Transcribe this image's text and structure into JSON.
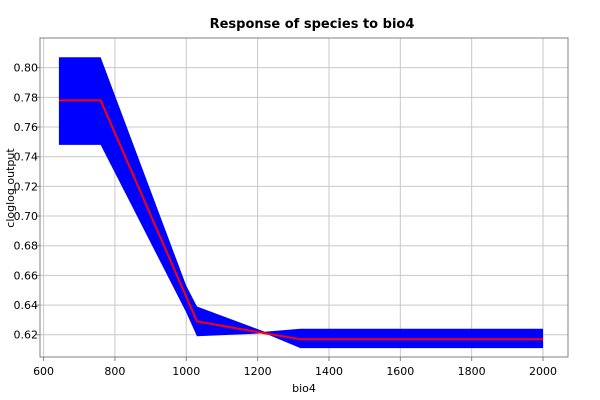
{
  "chart_data": {
    "type": "line",
    "title": "Response of species to bio4",
    "xlabel": "bio4",
    "ylabel": "cloglog output",
    "xlim": [
      590,
      2070
    ],
    "ylim": [
      0.605,
      0.82
    ],
    "grid": true,
    "x_ticks": [
      600,
      800,
      1000,
      1200,
      1400,
      1600,
      1800,
      2000
    ],
    "y_ticks": [
      0.62,
      0.64,
      0.66,
      0.68,
      0.7,
      0.72,
      0.74,
      0.76,
      0.78,
      0.8
    ],
    "x_tick_labels": [
      "600",
      "800",
      "1000",
      "1200",
      "1400",
      "1600",
      "1800",
      "2000"
    ],
    "y_tick_labels": [
      "0.62",
      "0.64",
      "0.66",
      "0.68",
      "0.70",
      "0.72",
      "0.74",
      "0.76",
      "0.78",
      "0.80"
    ],
    "series": [
      {
        "kind": "band",
        "color": "#0000ff",
        "x": [
          643,
          760,
          1000,
          1030,
          1220,
          1320,
          2000
        ],
        "upper": [
          0.807,
          0.807,
          0.653,
          0.639,
          0.622,
          0.624,
          0.624
        ],
        "lower": [
          0.748,
          0.748,
          0.635,
          0.619,
          0.621,
          0.611,
          0.611
        ]
      },
      {
        "kind": "line",
        "color": "#ff0000",
        "x": [
          643,
          760,
          1030,
          1220,
          1320,
          2000
        ],
        "y": [
          0.778,
          0.778,
          0.629,
          0.621,
          0.617,
          0.617
        ]
      }
    ]
  }
}
